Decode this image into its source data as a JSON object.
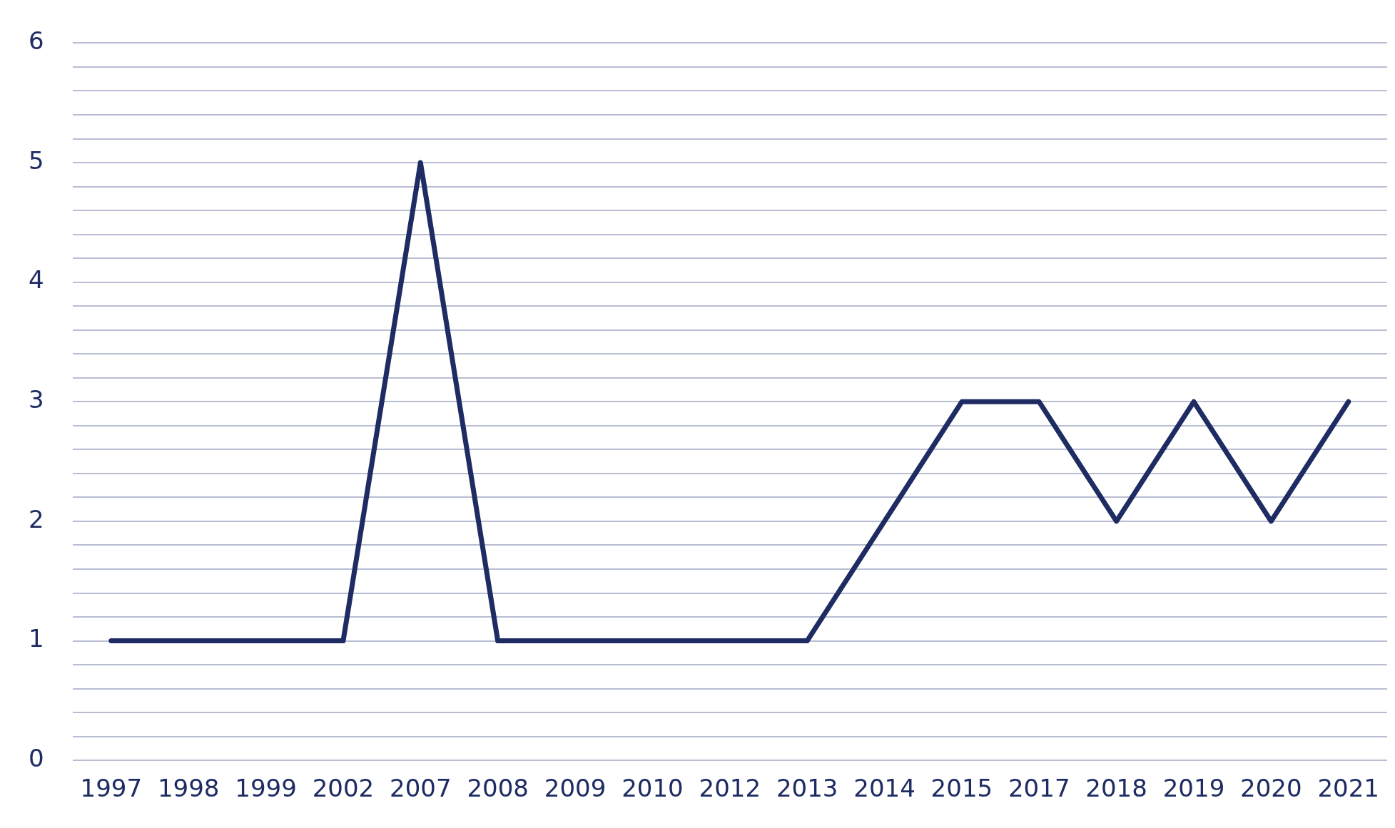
{
  "chart_data": {
    "type": "line",
    "categories": [
      "1997",
      "1998",
      "1999",
      "2002",
      "2007",
      "2008",
      "2009",
      "2010",
      "2012",
      "2013",
      "2014",
      "2015",
      "2017",
      "2018",
      "2019",
      "2020",
      "2021"
    ],
    "series": [
      {
        "color": "#1f2c63",
        "values": [
          1,
          1,
          1,
          1,
          5,
          1,
          1,
          1,
          1,
          1,
          2,
          3,
          3,
          2,
          3,
          2,
          3
        ]
      }
    ],
    "ylim": [
      0,
      6
    ],
    "yticks": [
      0,
      {
        "value": 0.2,
        "label": null
      },
      {
        "value": 0.4,
        "label": null
      },
      {
        "value": 0.6,
        "label": null
      },
      {
        "value": 0.8,
        "label": null
      },
      1,
      {
        "value": 1.2,
        "label": null
      },
      {
        "value": 1.4,
        "label": null
      },
      {
        "value": 1.6,
        "label": null
      },
      {
        "value": 1.8,
        "label": null
      },
      2,
      {
        "value": 2.2,
        "label": null
      },
      {
        "value": 2.4,
        "label": null
      },
      {
        "value": 2.6,
        "label": null
      },
      {
        "value": 2.8,
        "label": null
      },
      3,
      {
        "value": 3.2,
        "label": null
      },
      {
        "value": 3.4,
        "label": null
      },
      {
        "value": 3.6,
        "label": null
      },
      {
        "value": 3.8,
        "label": null
      },
      4,
      {
        "value": 4.2,
        "label": null
      },
      {
        "value": 4.4,
        "label": null
      },
      {
        "value": 4.6,
        "label": null
      },
      {
        "value": 4.8,
        "label": null
      },
      5,
      {
        "value": 5.2,
        "label": null
      },
      {
        "value": 5.4,
        "label": null
      },
      {
        "value": 5.6,
        "label": null
      },
      {
        "value": 5.8,
        "label": null
      },
      6
    ],
    "grid": "y",
    "legend": false,
    "marker": "none",
    "line_style": "solid"
  }
}
